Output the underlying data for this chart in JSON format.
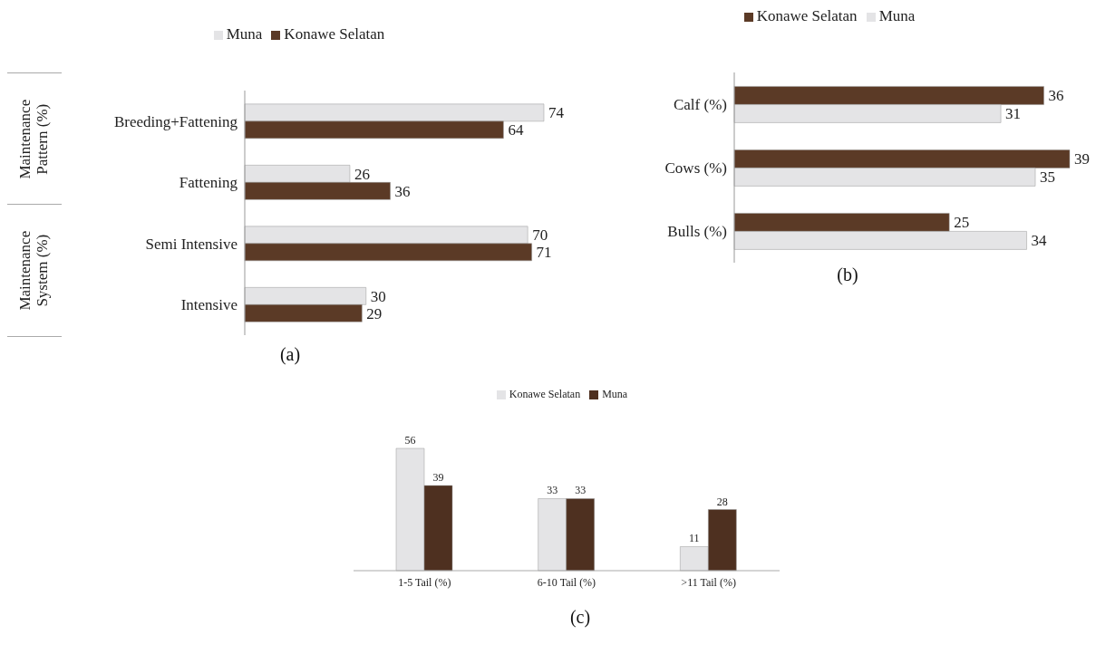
{
  "chart_data": [
    {
      "type": "bar",
      "orientation": "horizontal",
      "categories": [
        "Breeding+Fattening",
        "Fattening",
        "Semi Intensive",
        "Intensive"
      ],
      "series": [
        {
          "name": "Muna",
          "color": "#e4e4e6",
          "values": [
            74,
            26,
            70,
            30
          ]
        },
        {
          "name": "Konawe Selatan",
          "color": "#5b3a26",
          "values": [
            64,
            36,
            71,
            29
          ]
        }
      ],
      "data_labels": true,
      "legend": "top",
      "annotations": [
        "Maintenance Pattern (%)",
        "Maintenance System (%)",
        "(a)"
      ]
    },
    {
      "type": "bar",
      "orientation": "horizontal",
      "categories": [
        "Calf (%)",
        "Cows (%)",
        "Bulls (%)"
      ],
      "series": [
        {
          "name": "Konawe Selatan",
          "color": "#5b3a26",
          "values": [
            36,
            39,
            25
          ]
        },
        {
          "name": "Muna",
          "color": "#e4e4e6",
          "values": [
            31,
            35,
            34
          ]
        }
      ],
      "data_labels": true,
      "legend": "top",
      "annotations": [
        "(b)"
      ]
    },
    {
      "type": "bar",
      "categories": [
        "1-5 Tail (%)",
        "6-10  Tail (%)",
        ">11  Tail (%)"
      ],
      "series": [
        {
          "name": "Konawe Selatan",
          "color": "#e4e4e6",
          "values": [
            56,
            33,
            11
          ]
        },
        {
          "name": "Muna",
          "color": "#4e3020",
          "values": [
            39,
            33,
            28
          ]
        }
      ],
      "data_labels": true,
      "legend": "top",
      "annotations": [
        "(c)"
      ]
    }
  ]
}
